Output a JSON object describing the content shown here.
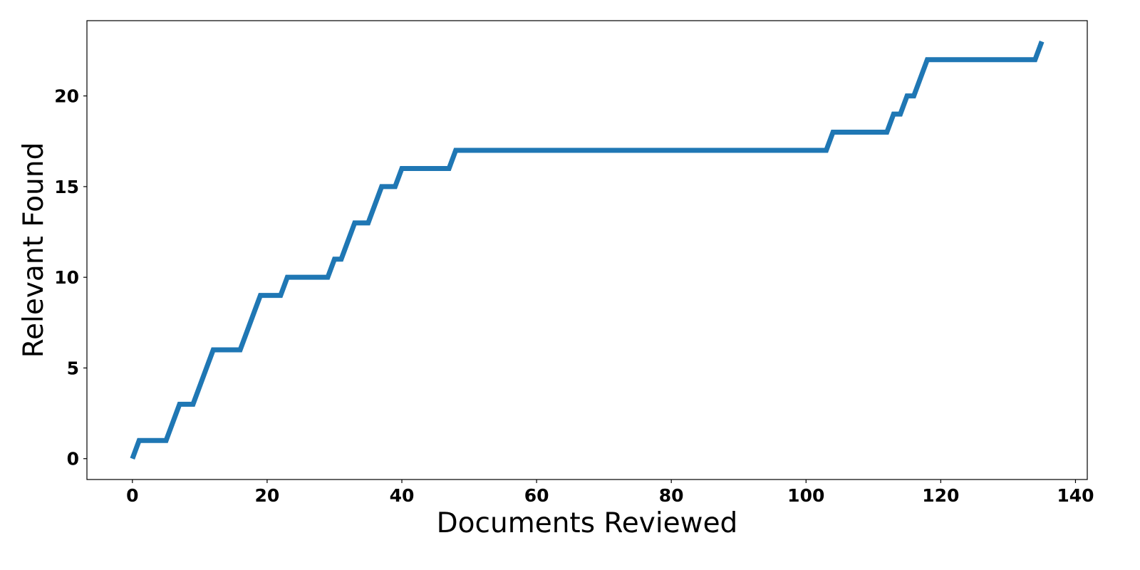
{
  "chart_data": {
    "type": "line",
    "title": "",
    "xlabel": "Documents Reviewed",
    "ylabel": "Relevant Found",
    "xlim": [
      -6.75,
      141.75
    ],
    "ylim": [
      -1.15,
      24.15
    ],
    "x_ticks": [
      0,
      20,
      40,
      60,
      80,
      100,
      120,
      140
    ],
    "y_ticks": [
      0,
      5,
      10,
      15,
      20
    ],
    "grid": false,
    "legend": "none",
    "colors": {
      "line": "#1f77b4",
      "frame": "#000000",
      "text": "#000000"
    },
    "series": [
      {
        "x": [
          0,
          1,
          2,
          3,
          4,
          5,
          6,
          7,
          8,
          9,
          10,
          11,
          12,
          13,
          14,
          15,
          16,
          17,
          18,
          19,
          20,
          21,
          22,
          23,
          24,
          25,
          26,
          27,
          28,
          29,
          30,
          31,
          32,
          33,
          34,
          35,
          36,
          37,
          38,
          39,
          40,
          41,
          42,
          43,
          44,
          45,
          46,
          47,
          48,
          49,
          50,
          51,
          52,
          53,
          54,
          55,
          56,
          57,
          58,
          59,
          60,
          61,
          62,
          63,
          64,
          65,
          66,
          67,
          68,
          69,
          70,
          71,
          72,
          73,
          74,
          75,
          76,
          77,
          78,
          79,
          80,
          81,
          82,
          83,
          84,
          85,
          86,
          87,
          88,
          89,
          90,
          91,
          92,
          93,
          94,
          95,
          96,
          97,
          98,
          99,
          100,
          101,
          102,
          103,
          104,
          105,
          106,
          107,
          108,
          109,
          110,
          111,
          112,
          113,
          114,
          115,
          116,
          117,
          118,
          119,
          120,
          121,
          122,
          123,
          124,
          125,
          126,
          127,
          128,
          129,
          130,
          131,
          132,
          133,
          134,
          135
        ],
        "y": [
          0,
          1,
          1,
          1,
          1,
          1,
          2,
          3,
          3,
          3,
          4,
          5,
          6,
          6,
          6,
          6,
          6,
          7,
          8,
          9,
          9,
          9,
          9,
          10,
          10,
          10,
          10,
          10,
          10,
          10,
          11,
          11,
          12,
          13,
          13,
          13,
          14,
          15,
          15,
          15,
          16,
          16,
          16,
          16,
          16,
          16,
          16,
          16,
          17,
          17,
          17,
          17,
          17,
          17,
          17,
          17,
          17,
          17,
          17,
          17,
          17,
          17,
          17,
          17,
          17,
          17,
          17,
          17,
          17,
          17,
          17,
          17,
          17,
          17,
          17,
          17,
          17,
          17,
          17,
          17,
          17,
          17,
          17,
          17,
          17,
          17,
          17,
          17,
          17,
          17,
          17,
          17,
          17,
          17,
          17,
          17,
          17,
          17,
          17,
          17,
          17,
          17,
          17,
          17,
          18,
          18,
          18,
          18,
          18,
          18,
          18,
          18,
          18,
          19,
          19,
          20,
          20,
          21,
          22,
          22,
          22,
          22,
          22,
          22,
          22,
          22,
          22,
          22,
          22,
          22,
          22,
          22,
          22,
          22,
          22,
          23
        ]
      }
    ]
  }
}
